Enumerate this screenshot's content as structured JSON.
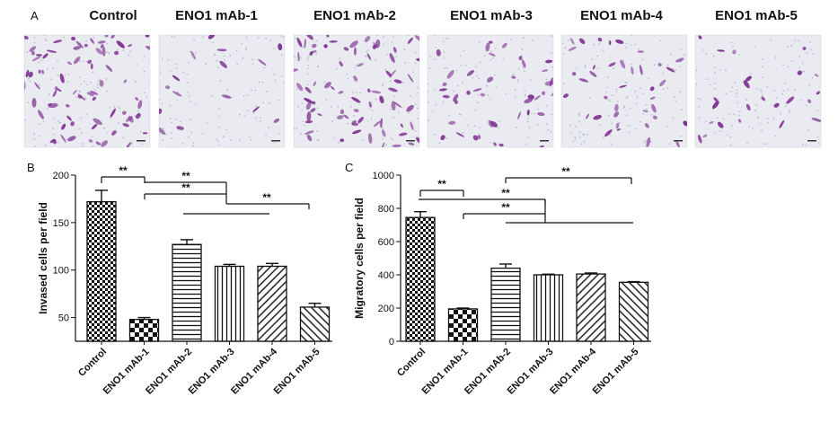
{
  "panel_a": {
    "letter": "A",
    "titles": [
      "Control",
      "ENO1 mAb-1",
      "ENO1 mAb-2",
      "ENO1 mAb-3",
      "ENO1 mAb-4",
      "ENO1 mAb-5"
    ],
    "cell_density": [
      1.0,
      0.2,
      1.0,
      0.55,
      0.5,
      0.3
    ],
    "stain_color": "#7b2d8e"
  },
  "chart_data": [
    {
      "panel": "B",
      "type": "bar",
      "ylabel": "Invased cells per field",
      "categories": [
        "Control",
        "ENO1 mAb-1",
        "ENO1 mAb-2",
        "ENO1 mAb-3",
        "ENO1 mAb-4",
        "ENO1 mAb-5"
      ],
      "values": [
        172,
        48,
        127,
        104,
        104,
        61
      ],
      "errors": [
        12,
        2,
        5,
        2,
        3,
        4
      ],
      "ylim": [
        25,
        200
      ],
      "yticks": [
        50,
        100,
        150,
        200
      ],
      "significance": [
        "**",
        "**",
        "**",
        "**"
      ]
    },
    {
      "panel": "C",
      "type": "bar",
      "ylabel": "Migratory cells per field",
      "categories": [
        "Control",
        "ENO1 mAb-1",
        "ENO1 mAb-2",
        "ENO1 mAb-3",
        "ENO1 mAb-4",
        "ENO1 mAb-5"
      ],
      "values": [
        745,
        195,
        440,
        400,
        405,
        355
      ],
      "errors": [
        35,
        5,
        25,
        4,
        6,
        4
      ],
      "ylim": [
        0,
        1000
      ],
      "yticks": [
        0,
        200,
        400,
        600,
        800,
        1000
      ],
      "significance": [
        "**",
        "**",
        "**",
        "**"
      ]
    }
  ]
}
